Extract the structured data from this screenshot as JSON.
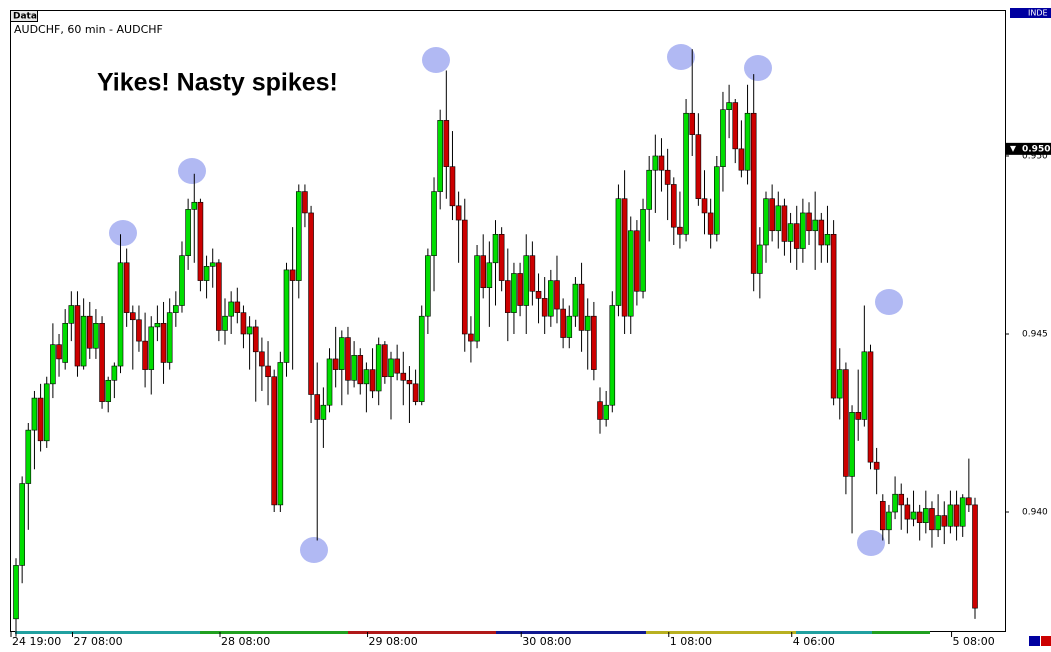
{
  "chart_data": {
    "type": "candlestick",
    "window_label": "Data",
    "title": "AUDCHF, 60 min - AUDCHF",
    "annotation": "Yikes! Nasty spikes!",
    "corner_tag": "INDE",
    "up_color": "#00dd00",
    "down_color": "#cc0000",
    "ylim": [
      0.93663,
      0.9541
    ],
    "yticks": [
      {
        "value": 0.94,
        "label": "0.940"
      },
      {
        "value": 0.945,
        "label": "0.945"
      },
      {
        "value": 0.95,
        "label": "0.950"
      }
    ],
    "price_marker": {
      "value": 0.9502,
      "label": "0.950"
    },
    "categories": [
      "24 19:00",
      null,
      null,
      null,
      null,
      null,
      null,
      null,
      null,
      null,
      "27 08:00",
      null,
      null,
      null,
      null,
      null,
      null,
      null,
      null,
      null,
      null,
      null,
      null,
      null,
      null,
      null,
      null,
      null,
      null,
      null,
      null,
      null,
      null,
      null,
      "28 08:00",
      null,
      null,
      null,
      null,
      null,
      null,
      null,
      null,
      null,
      null,
      null,
      null,
      null,
      null,
      null,
      null,
      null,
      null,
      null,
      null,
      null,
      null,
      null,
      "29 08:00",
      null,
      null,
      null,
      null,
      null,
      null,
      null,
      null,
      null,
      null,
      null,
      null,
      null,
      null,
      null,
      null,
      null,
      null,
      null,
      null,
      null,
      null,
      null,
      null,
      "30 08:00",
      null,
      null,
      null,
      null,
      null,
      null,
      null,
      null,
      null,
      null,
      null,
      null,
      null,
      null,
      null,
      null,
      null,
      null,
      null,
      null,
      null,
      null,
      null,
      "1 08:00",
      null,
      null,
      null,
      null,
      null,
      null,
      null,
      null,
      null,
      null,
      null,
      null,
      null,
      null,
      null,
      null,
      null,
      null,
      null,
      "4 06:00",
      null,
      null,
      null,
      null,
      null,
      null,
      null,
      null,
      null,
      null,
      null,
      null,
      null,
      null,
      null,
      null,
      null,
      null,
      null,
      null,
      null,
      null,
      null,
      null,
      null,
      "5 08:00",
      null,
      null,
      null
    ],
    "ohlc": [
      [
        0.937,
        0.9387,
        0.9365,
        0.9385
      ],
      [
        0.9385,
        0.941,
        0.938,
        0.9408
      ],
      [
        0.9408,
        0.9425,
        0.9395,
        0.9423
      ],
      [
        0.9423,
        0.9434,
        0.9412,
        0.9432
      ],
      [
        0.9432,
        0.9436,
        0.9417,
        0.942
      ],
      [
        0.942,
        0.9438,
        0.9418,
        0.9436
      ],
      [
        0.9436,
        0.9453,
        0.9432,
        0.9447
      ],
      [
        0.9447,
        0.945,
        0.9438,
        0.9443
      ],
      [
        0.9442,
        0.9457,
        0.944,
        0.9453
      ],
      [
        0.9453,
        0.9462,
        0.9448,
        0.9458
      ],
      [
        0.9458,
        0.9462,
        0.9438,
        0.9441
      ],
      [
        0.9441,
        0.946,
        0.944,
        0.9455
      ],
      [
        0.9455,
        0.9459,
        0.9443,
        0.9446
      ],
      [
        0.9446,
        0.9457,
        0.9443,
        0.9453
      ],
      [
        0.9453,
        0.9455,
        0.9429,
        0.9431
      ],
      [
        0.9431,
        0.9438,
        0.9428,
        0.9437
      ],
      [
        0.9437,
        0.9442,
        0.9432,
        0.9441
      ],
      [
        0.9441,
        0.9478,
        0.9439,
        0.947
      ],
      [
        0.947,
        0.9474,
        0.9452,
        0.9456
      ],
      [
        0.9456,
        0.9458,
        0.944,
        0.9454
      ],
      [
        0.9454,
        0.9458,
        0.9445,
        0.9448
      ],
      [
        0.9448,
        0.9456,
        0.9435,
        0.944
      ],
      [
        0.944,
        0.9455,
        0.9433,
        0.9452
      ],
      [
        0.9452,
        0.9458,
        0.9448,
        0.9453
      ],
      [
        0.9453,
        0.9459,
        0.9436,
        0.9442
      ],
      [
        0.9442,
        0.946,
        0.944,
        0.9456
      ],
      [
        0.9456,
        0.9462,
        0.9452,
        0.9458
      ],
      [
        0.9458,
        0.9476,
        0.9456,
        0.9472
      ],
      [
        0.9472,
        0.9488,
        0.9468,
        0.9485
      ],
      [
        0.9485,
        0.9495,
        0.947,
        0.9487
      ],
      [
        0.9487,
        0.9488,
        0.9462,
        0.9465
      ],
      [
        0.9465,
        0.9472,
        0.946,
        0.9469
      ],
      [
        0.9469,
        0.9474,
        0.9463,
        0.947
      ],
      [
        0.947,
        0.9471,
        0.9448,
        0.9451
      ],
      [
        0.9451,
        0.946,
        0.9447,
        0.9455
      ],
      [
        0.9455,
        0.9462,
        0.945,
        0.9459
      ],
      [
        0.9459,
        0.9463,
        0.9453,
        0.9456
      ],
      [
        0.9456,
        0.9458,
        0.9446,
        0.945
      ],
      [
        0.945,
        0.9455,
        0.944,
        0.9452
      ],
      [
        0.9452,
        0.9454,
        0.9431,
        0.9445
      ],
      [
        0.9445,
        0.9449,
        0.9434,
        0.9441
      ],
      [
        0.9441,
        0.9448,
        0.943,
        0.9438
      ],
      [
        0.9438,
        0.944,
        0.94,
        0.9402
      ],
      [
        0.9402,
        0.9445,
        0.94,
        0.9442
      ],
      [
        0.9442,
        0.947,
        0.9438,
        0.9468
      ],
      [
        0.9468,
        0.948,
        0.944,
        0.9465
      ],
      [
        0.9465,
        0.9492,
        0.946,
        0.949
      ],
      [
        0.949,
        0.9492,
        0.948,
        0.9484
      ],
      [
        0.9484,
        0.9486,
        0.9425,
        0.9433
      ],
      [
        0.9433,
        0.9442,
        0.9392,
        0.9426
      ],
      [
        0.9426,
        0.9435,
        0.9418,
        0.943
      ],
      [
        0.943,
        0.9446,
        0.9428,
        0.9443
      ],
      [
        0.9443,
        0.9452,
        0.9435,
        0.944
      ],
      [
        0.944,
        0.9451,
        0.943,
        0.9449
      ],
      [
        0.9449,
        0.9452,
        0.9433,
        0.9437
      ],
      [
        0.9437,
        0.9448,
        0.9435,
        0.9444
      ],
      [
        0.9444,
        0.9446,
        0.9433,
        0.9436
      ],
      [
        0.9436,
        0.9442,
        0.9428,
        0.944
      ],
      [
        0.944,
        0.9446,
        0.9432,
        0.9434
      ],
      [
        0.9434,
        0.9449,
        0.943,
        0.9447
      ],
      [
        0.9447,
        0.9448,
        0.9436,
        0.9438
      ],
      [
        0.9438,
        0.9445,
        0.9426,
        0.9443
      ],
      [
        0.9443,
        0.9447,
        0.9437,
        0.9439
      ],
      [
        0.9439,
        0.9445,
        0.943,
        0.9437
      ],
      [
        0.9437,
        0.9441,
        0.9425,
        0.9436
      ],
      [
        0.9436,
        0.944,
        0.943,
        0.9431
      ],
      [
        0.9431,
        0.9458,
        0.943,
        0.9455
      ],
      [
        0.9455,
        0.9474,
        0.945,
        0.9472
      ],
      [
        0.9472,
        0.9494,
        0.9462,
        0.949
      ],
      [
        0.949,
        0.9513,
        0.9485,
        0.951
      ],
      [
        0.951,
        0.9524,
        0.9488,
        0.9497
      ],
      [
        0.9497,
        0.9507,
        0.9482,
        0.9486
      ],
      [
        0.9486,
        0.949,
        0.947,
        0.9482
      ],
      [
        0.9482,
        0.9488,
        0.9445,
        0.945
      ],
      [
        0.945,
        0.9455,
        0.9442,
        0.9448
      ],
      [
        0.9448,
        0.9475,
        0.9446,
        0.9472
      ],
      [
        0.9472,
        0.9478,
        0.946,
        0.9463
      ],
      [
        0.9463,
        0.9476,
        0.9452,
        0.947
      ],
      [
        0.947,
        0.9482,
        0.9458,
        0.9478
      ],
      [
        0.9478,
        0.948,
        0.9462,
        0.9465
      ],
      [
        0.9465,
        0.9474,
        0.9448,
        0.9456
      ],
      [
        0.9456,
        0.947,
        0.945,
        0.9467
      ],
      [
        0.9467,
        0.947,
        0.9455,
        0.9458
      ],
      [
        0.9458,
        0.9478,
        0.945,
        0.9472
      ],
      [
        0.9472,
        0.9476,
        0.9458,
        0.9462
      ],
      [
        0.9462,
        0.9467,
        0.9453,
        0.946
      ],
      [
        0.946,
        0.9466,
        0.945,
        0.9455
      ],
      [
        0.9455,
        0.9468,
        0.9452,
        0.9465
      ],
      [
        0.9465,
        0.9472,
        0.9453,
        0.9457
      ],
      [
        0.9457,
        0.946,
        0.9446,
        0.9449
      ],
      [
        0.9449,
        0.9458,
        0.9446,
        0.9455
      ],
      [
        0.9455,
        0.9466,
        0.9452,
        0.9464
      ],
      [
        0.9464,
        0.947,
        0.9445,
        0.9451
      ],
      [
        0.9451,
        0.946,
        0.944,
        0.9455
      ],
      [
        0.9455,
        0.9459,
        0.9437,
        0.944
      ],
      [
        0.9431,
        0.9435,
        0.9422,
        0.9426
      ],
      [
        0.9426,
        0.9434,
        0.9424,
        0.943
      ],
      [
        0.943,
        0.9462,
        0.9428,
        0.9458
      ],
      [
        0.9458,
        0.9492,
        0.9455,
        0.9488
      ],
      [
        0.9488,
        0.9496,
        0.945,
        0.9455
      ],
      [
        0.9455,
        0.9483,
        0.945,
        0.9479
      ],
      [
        0.9479,
        0.9482,
        0.9458,
        0.9462
      ],
      [
        0.9462,
        0.9488,
        0.946,
        0.9485
      ],
      [
        0.9485,
        0.95,
        0.9476,
        0.9496
      ],
      [
        0.9496,
        0.9506,
        0.9484,
        0.95
      ],
      [
        0.95,
        0.9505,
        0.949,
        0.9496
      ],
      [
        0.9496,
        0.9502,
        0.9482,
        0.9492
      ],
      [
        0.9492,
        0.9494,
        0.9475,
        0.948
      ],
      [
        0.948,
        0.949,
        0.9474,
        0.9478
      ],
      [
        0.9478,
        0.9516,
        0.9476,
        0.9512
      ],
      [
        0.9512,
        0.953,
        0.95,
        0.9506
      ],
      [
        0.9506,
        0.9512,
        0.9486,
        0.9488
      ],
      [
        0.9488,
        0.9496,
        0.9478,
        0.9484
      ],
      [
        0.9484,
        0.9488,
        0.9474,
        0.9478
      ],
      [
        0.9478,
        0.95,
        0.9476,
        0.9497
      ],
      [
        0.9497,
        0.9518,
        0.949,
        0.9513
      ],
      [
        0.9513,
        0.952,
        0.9505,
        0.9515
      ],
      [
        0.9515,
        0.9516,
        0.9498,
        0.9502
      ],
      [
        0.9502,
        0.951,
        0.9494,
        0.9496
      ],
      [
        0.9496,
        0.952,
        0.9492,
        0.9512
      ],
      [
        0.9512,
        0.9523,
        0.9462,
        0.9467
      ],
      [
        0.9467,
        0.948,
        0.946,
        0.9475
      ],
      [
        0.9475,
        0.949,
        0.947,
        0.9488
      ],
      [
        0.9488,
        0.9492,
        0.9476,
        0.9479
      ],
      [
        0.9479,
        0.949,
        0.9474,
        0.9486
      ],
      [
        0.9486,
        0.9488,
        0.9472,
        0.9476
      ],
      [
        0.9476,
        0.9484,
        0.947,
        0.9481
      ],
      [
        0.9481,
        0.9486,
        0.9468,
        0.9474
      ],
      [
        0.9474,
        0.9488,
        0.947,
        0.9484
      ],
      [
        0.9484,
        0.9487,
        0.9475,
        0.9479
      ],
      [
        0.9479,
        0.949,
        0.9468,
        0.9482
      ],
      [
        0.9482,
        0.9484,
        0.947,
        0.9475
      ],
      [
        0.9475,
        0.9486,
        0.947,
        0.9478
      ],
      [
        0.9478,
        0.9482,
        0.943,
        0.9432
      ],
      [
        0.9432,
        0.9446,
        0.9426,
        0.944
      ],
      [
        0.944,
        0.9442,
        0.9405,
        0.941
      ],
      [
        0.941,
        0.943,
        0.9394,
        0.9428
      ],
      [
        0.9428,
        0.944,
        0.942,
        0.9426
      ],
      [
        0.9426,
        0.9458,
        0.9424,
        0.9445
      ],
      [
        0.9445,
        0.9447,
        0.9412,
        0.9414
      ],
      [
        0.9414,
        0.9418,
        0.9405,
        0.9412
      ],
      [
        0.9403,
        0.9405,
        0.9392,
        0.9395
      ],
      [
        0.9395,
        0.9402,
        0.9391,
        0.94
      ],
      [
        0.94,
        0.941,
        0.9398,
        0.9405
      ],
      [
        0.9405,
        0.9408,
        0.9395,
        0.9402
      ],
      [
        0.9402,
        0.9404,
        0.9394,
        0.9398
      ],
      [
        0.9398,
        0.9406,
        0.9396,
        0.94
      ],
      [
        0.94,
        0.9402,
        0.9392,
        0.9397
      ],
      [
        0.9397,
        0.9406,
        0.9394,
        0.9401
      ],
      [
        0.9401,
        0.9403,
        0.939,
        0.9395
      ],
      [
        0.9395,
        0.9405,
        0.9393,
        0.9399
      ],
      [
        0.9399,
        0.9403,
        0.9391,
        0.9396
      ],
      [
        0.9396,
        0.9406,
        0.9394,
        0.9402
      ],
      [
        0.9402,
        0.9406,
        0.9392,
        0.9396
      ],
      [
        0.9396,
        0.9405,
        0.9393,
        0.9404
      ],
      [
        0.9404,
        0.9415,
        0.94,
        0.9402
      ],
      [
        0.9402,
        0.9404,
        0.937,
        0.9373
      ]
    ]
  }
}
